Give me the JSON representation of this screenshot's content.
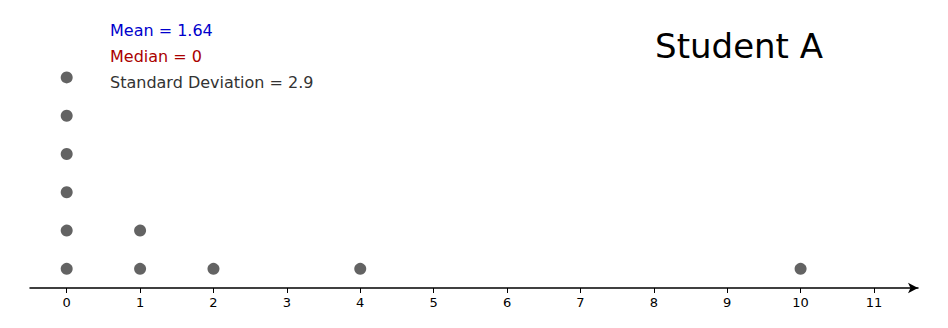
{
  "chart_data": {
    "type": "dot_plot",
    "title": "Student A",
    "annotations": [
      {
        "text": "Mean = 1.64",
        "color": "#0000CC"
      },
      {
        "text": "Median = 0",
        "color": "#AA0000"
      },
      {
        "text": "Standard Deviation = 2.9",
        "color": "#333333"
      }
    ],
    "x": [
      0,
      1,
      2,
      4,
      10
    ],
    "values": [
      6,
      2,
      1,
      1,
      1
    ],
    "color": "#3C3C3C",
    "xlim": [
      -0.5,
      11.6
    ],
    "xticks": [
      0,
      1,
      2,
      3,
      4,
      5,
      6,
      7,
      8,
      9,
      10,
      11
    ],
    "ylim": [
      0,
      7
    ],
    "tick_labels": "x",
    "grid": false
  }
}
